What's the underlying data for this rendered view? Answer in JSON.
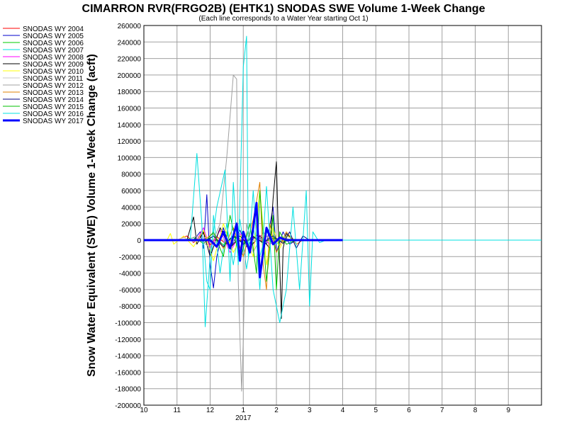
{
  "chart_data": {
    "type": "line",
    "title": "CIMARRON RVR(FRGO2B) (EHTK1) SNODAS SWE Volume 1-Week Change",
    "subtitle": "(Each line corresponds to a Water Year starting Oct 1)",
    "ylabel": "Snow Water Equivalent (SWE) Volume 1-Week Change (acft)",
    "year_label": "2017",
    "ylim": [
      -200000,
      260000
    ],
    "y_ticks": [
      260000,
      240000,
      220000,
      200000,
      180000,
      160000,
      140000,
      120000,
      100000,
      80000,
      60000,
      40000,
      20000,
      0,
      -20000,
      -40000,
      -60000,
      -80000,
      -100000,
      -120000,
      -140000,
      -160000,
      -180000,
      -200000
    ],
    "x_ticks": [
      "10",
      "11",
      "12",
      "1",
      "2",
      "3",
      "4",
      "5",
      "6",
      "7",
      "8",
      "9"
    ],
    "xlim": [
      0,
      12
    ],
    "grid": true,
    "legend_position": "left",
    "series": [
      {
        "name": "SNODAS WY 2004",
        "color": "#ff0000",
        "width": 1,
        "points": [
          [
            0,
            0
          ],
          [
            1.0,
            0
          ],
          [
            1.3,
            5000
          ],
          [
            1.5,
            -3000
          ],
          [
            1.8,
            8000
          ],
          [
            2.0,
            -6000
          ],
          [
            2.2,
            4000
          ],
          [
            2.5,
            -5000
          ],
          [
            2.8,
            6000
          ],
          [
            3.0,
            -4000
          ],
          [
            3.3,
            3000
          ],
          [
            3.6,
            -2000
          ],
          [
            3.9,
            2000
          ],
          [
            4.2,
            -1000
          ],
          [
            4.5,
            0
          ],
          [
            6,
            0
          ]
        ]
      },
      {
        "name": "SNODAS WY 2005",
        "color": "#0000cc",
        "width": 1,
        "points": [
          [
            0,
            0
          ],
          [
            1.5,
            0
          ],
          [
            1.7,
            10000
          ],
          [
            1.8,
            -10000
          ],
          [
            1.9,
            55000
          ],
          [
            2.0,
            -30000
          ],
          [
            2.1,
            -58000
          ],
          [
            2.2,
            -20000
          ],
          [
            2.4,
            15000
          ],
          [
            2.6,
            -10000
          ],
          [
            2.9,
            12000
          ],
          [
            3.1,
            -8000
          ],
          [
            3.4,
            6000
          ],
          [
            3.7,
            -5000
          ],
          [
            3.9,
            40000
          ],
          [
            4.0,
            -15000
          ],
          [
            4.2,
            10000
          ],
          [
            4.4,
            -5000
          ],
          [
            4.6,
            0
          ],
          [
            6,
            0
          ]
        ]
      },
      {
        "name": "SNODAS WY 2006",
        "color": "#00cc00",
        "width": 1,
        "points": [
          [
            0,
            0
          ],
          [
            1.2,
            0
          ],
          [
            1.5,
            3000
          ],
          [
            1.8,
            -4000
          ],
          [
            2.1,
            5000
          ],
          [
            2.4,
            -6000
          ],
          [
            2.7,
            4000
          ],
          [
            3.0,
            -3000
          ],
          [
            3.3,
            5000
          ],
          [
            3.6,
            -4000
          ],
          [
            3.9,
            3000
          ],
          [
            4.2,
            -2000
          ],
          [
            4.5,
            0
          ],
          [
            6,
            0
          ]
        ]
      },
      {
        "name": "SNODAS WY 2007",
        "color": "#00e0e0",
        "width": 1,
        "points": [
          [
            0,
            0
          ],
          [
            1.8,
            0
          ],
          [
            1.9,
            -50000
          ],
          [
            2.0,
            -60000
          ],
          [
            2.1,
            30000
          ],
          [
            2.3,
            -40000
          ],
          [
            2.5,
            20000
          ],
          [
            2.7,
            -30000
          ],
          [
            2.9,
            25000
          ],
          [
            3.1,
            -35000
          ],
          [
            3.3,
            15000
          ],
          [
            3.5,
            -20000
          ],
          [
            3.7,
            10000
          ],
          [
            4.0,
            -5000
          ],
          [
            4.3,
            5000
          ],
          [
            4.6,
            0
          ],
          [
            6,
            0
          ]
        ]
      },
      {
        "name": "SNODAS WY 2008",
        "color": "#ff00ff",
        "width": 1,
        "points": [
          [
            0,
            0
          ],
          [
            1.6,
            0
          ],
          [
            1.8,
            15000
          ],
          [
            2.0,
            -10000
          ],
          [
            2.3,
            12000
          ],
          [
            2.6,
            -15000
          ],
          [
            2.9,
            8000
          ],
          [
            3.2,
            -10000
          ],
          [
            3.5,
            6000
          ],
          [
            3.8,
            -5000
          ],
          [
            4.1,
            3000
          ],
          [
            4.4,
            0
          ],
          [
            6,
            0
          ]
        ]
      },
      {
        "name": "SNODAS WY 2009",
        "color": "#000000",
        "width": 1,
        "points": [
          [
            0,
            0
          ],
          [
            1.3,
            0
          ],
          [
            1.5,
            28000
          ],
          [
            1.6,
            -5000
          ],
          [
            1.8,
            10000
          ],
          [
            2.0,
            -20000
          ],
          [
            2.3,
            15000
          ],
          [
            2.6,
            -10000
          ],
          [
            2.9,
            5000
          ],
          [
            3.2,
            -8000
          ],
          [
            3.5,
            5000
          ],
          [
            3.8,
            -10000
          ],
          [
            3.9,
            50000
          ],
          [
            4.0,
            95000
          ],
          [
            4.05,
            20000
          ],
          [
            4.1,
            -30000
          ],
          [
            4.15,
            -95000
          ],
          [
            4.2,
            -10000
          ],
          [
            4.3,
            8000
          ],
          [
            4.5,
            0
          ],
          [
            6,
            0
          ]
        ]
      },
      {
        "name": "SNODAS WY 2010",
        "color": "#ffff00",
        "width": 1,
        "points": [
          [
            0,
            0
          ],
          [
            0.7,
            0
          ],
          [
            0.8,
            8000
          ],
          [
            0.9,
            -5000
          ],
          [
            1.2,
            5000
          ],
          [
            1.5,
            -8000
          ],
          [
            1.8,
            12000
          ],
          [
            2.1,
            -25000
          ],
          [
            2.4,
            20000
          ],
          [
            2.7,
            -15000
          ],
          [
            3.0,
            10000
          ],
          [
            3.3,
            -20000
          ],
          [
            3.5,
            60000
          ],
          [
            3.7,
            -30000
          ],
          [
            3.9,
            15000
          ],
          [
            4.1,
            -10000
          ],
          [
            4.3,
            5000
          ],
          [
            4.6,
            0
          ],
          [
            6,
            0
          ]
        ]
      },
      {
        "name": "SNODAS WY 2011",
        "color": "#c8c8c8",
        "width": 1,
        "points": [
          [
            0,
            0
          ],
          [
            1.0,
            0
          ],
          [
            1.2,
            3000
          ],
          [
            1.5,
            -2000
          ],
          [
            1.8,
            4000
          ],
          [
            2.1,
            -3000
          ],
          [
            2.4,
            2000
          ],
          [
            2.7,
            -2000
          ],
          [
            3.0,
            3000
          ],
          [
            3.3,
            -1000
          ],
          [
            3.6,
            1000
          ],
          [
            3.9,
            0
          ],
          [
            6,
            0
          ]
        ]
      },
      {
        "name": "SNODAS WY 2012",
        "color": "#a0a0a0",
        "width": 1,
        "points": [
          [
            0,
            0
          ],
          [
            1.3,
            0
          ],
          [
            1.6,
            5000
          ],
          [
            2.0,
            -10000
          ],
          [
            2.3,
            20000
          ],
          [
            2.5,
            100000
          ],
          [
            2.6,
            150000
          ],
          [
            2.7,
            200000
          ],
          [
            2.8,
            195000
          ],
          [
            2.85,
            -50000
          ],
          [
            2.95,
            -183000
          ],
          [
            3.0,
            -120000
          ],
          [
            3.05,
            -30000
          ],
          [
            3.1,
            20000
          ],
          [
            3.3,
            -15000
          ],
          [
            3.6,
            10000
          ],
          [
            3.9,
            -5000
          ],
          [
            4.2,
            3000
          ],
          [
            4.5,
            0
          ],
          [
            6,
            0
          ]
        ]
      },
      {
        "name": "SNODAS WY 2013",
        "color": "#e08000",
        "width": 1,
        "points": [
          [
            0,
            0
          ],
          [
            1.8,
            0
          ],
          [
            2.1,
            8000
          ],
          [
            2.4,
            -10000
          ],
          [
            2.7,
            15000
          ],
          [
            3.0,
            -20000
          ],
          [
            3.3,
            25000
          ],
          [
            3.5,
            70000
          ],
          [
            3.6,
            -30000
          ],
          [
            3.7,
            -60000
          ],
          [
            3.8,
            20000
          ],
          [
            4.0,
            -15000
          ],
          [
            4.3,
            10000
          ],
          [
            4.6,
            -5000
          ],
          [
            4.8,
            0
          ],
          [
            6,
            0
          ]
        ]
      },
      {
        "name": "SNODAS WY 2014",
        "color": "#000080",
        "width": 1,
        "points": [
          [
            0,
            0
          ],
          [
            1.9,
            0
          ],
          [
            2.1,
            5000
          ],
          [
            2.4,
            -8000
          ],
          [
            2.7,
            6000
          ],
          [
            3.0,
            -5000
          ],
          [
            3.3,
            4000
          ],
          [
            3.6,
            -3000
          ],
          [
            3.9,
            5000
          ],
          [
            4.2,
            -4000
          ],
          [
            4.4,
            10000
          ],
          [
            4.6,
            -10000
          ],
          [
            4.8,
            5000
          ],
          [
            5.0,
            0
          ],
          [
            6,
            0
          ]
        ]
      },
      {
        "name": "SNODAS WY 2015",
        "color": "#00c000",
        "width": 1,
        "points": [
          [
            0,
            0
          ],
          [
            1.9,
            0
          ],
          [
            2.1,
            10000
          ],
          [
            2.4,
            -20000
          ],
          [
            2.6,
            30000
          ],
          [
            2.9,
            -25000
          ],
          [
            3.2,
            20000
          ],
          [
            3.4,
            -40000
          ],
          [
            3.5,
            60000
          ],
          [
            3.7,
            -50000
          ],
          [
            3.9,
            30000
          ],
          [
            4.0,
            -60000
          ],
          [
            4.1,
            10000
          ],
          [
            4.3,
            -5000
          ],
          [
            4.6,
            0
          ],
          [
            6,
            0
          ]
        ]
      },
      {
        "name": "SNODAS WY 2016",
        "color": "#00e0e0",
        "width": 1,
        "points": [
          [
            0,
            0
          ],
          [
            1.4,
            0
          ],
          [
            1.6,
            105000
          ],
          [
            1.75,
            20000
          ],
          [
            1.85,
            -105000
          ],
          [
            2.0,
            -20000
          ],
          [
            2.2,
            40000
          ],
          [
            2.45,
            85000
          ],
          [
            2.6,
            -50000
          ],
          [
            2.7,
            70000
          ],
          [
            2.85,
            -30000
          ],
          [
            3.0,
            210000
          ],
          [
            3.1,
            247000
          ],
          [
            3.15,
            -20000
          ],
          [
            3.3,
            60000
          ],
          [
            3.5,
            -60000
          ],
          [
            3.7,
            65000
          ],
          [
            3.9,
            -60000
          ],
          [
            4.1,
            -100000
          ],
          [
            4.3,
            -60000
          ],
          [
            4.5,
            40000
          ],
          [
            4.7,
            -60000
          ],
          [
            4.9,
            60000
          ],
          [
            5.0,
            -80000
          ],
          [
            5.1,
            10000
          ],
          [
            5.3,
            -3000
          ],
          [
            5.5,
            0
          ],
          [
            12,
            0
          ]
        ]
      },
      {
        "name": "SNODAS WY 2017",
        "color": "#0000ff",
        "width": 3,
        "points": [
          [
            0,
            0
          ],
          [
            2.0,
            0
          ],
          [
            2.2,
            -8000
          ],
          [
            2.4,
            10000
          ],
          [
            2.6,
            -10000
          ],
          [
            2.8,
            20000
          ],
          [
            2.9,
            -25000
          ],
          [
            3.0,
            10000
          ],
          [
            3.2,
            -15000
          ],
          [
            3.4,
            45000
          ],
          [
            3.5,
            -45000
          ],
          [
            3.7,
            15000
          ],
          [
            3.9,
            -5000
          ],
          [
            4.1,
            3000
          ],
          [
            4.3,
            0
          ],
          [
            6,
            0
          ]
        ]
      }
    ]
  }
}
